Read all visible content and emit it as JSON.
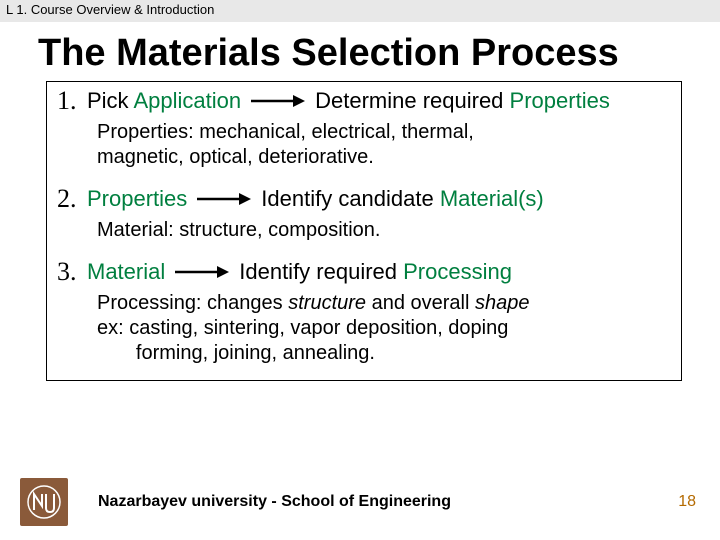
{
  "header": {
    "text": "L 1. Course Overview & Introduction"
  },
  "title": "The Materials Selection Process",
  "steps": [
    {
      "num": "1.",
      "pick_prefix": "Pick ",
      "pick_item": "Application",
      "leads_prefix": "Determine required ",
      "leads_item": "Properties",
      "desc_html": "Properties:  mechanical, electrical, thermal,<br>magnetic, optical, deteriorative."
    },
    {
      "num": "2.",
      "pick_prefix": "",
      "pick_item": "Properties",
      "leads_prefix": "Identify candidate ",
      "leads_item": "Material(s)",
      "desc_html": "Material:  structure, composition."
    },
    {
      "num": "3.",
      "pick_prefix": "",
      "pick_item": "Material",
      "leads_prefix": "Identify required ",
      "leads_item": "Processing",
      "desc_html": "Processing:  changes <i>structure</i> and overall <i>shape</i><br>ex:  casting, sintering, vapor deposition, doping<br>&nbsp;&nbsp;&nbsp;&nbsp;&nbsp;&nbsp;&nbsp;forming, joining, annealing."
    }
  ],
  "footer": {
    "logo_text": "NU",
    "org": "Nazarbayev university - School of Engineering",
    "page": "18"
  },
  "colors": {
    "highlight": "#007f3f",
    "header_bg": "#e8e8e8",
    "logo_bg": "#8a5a3a",
    "page_num": "#b46a00"
  }
}
